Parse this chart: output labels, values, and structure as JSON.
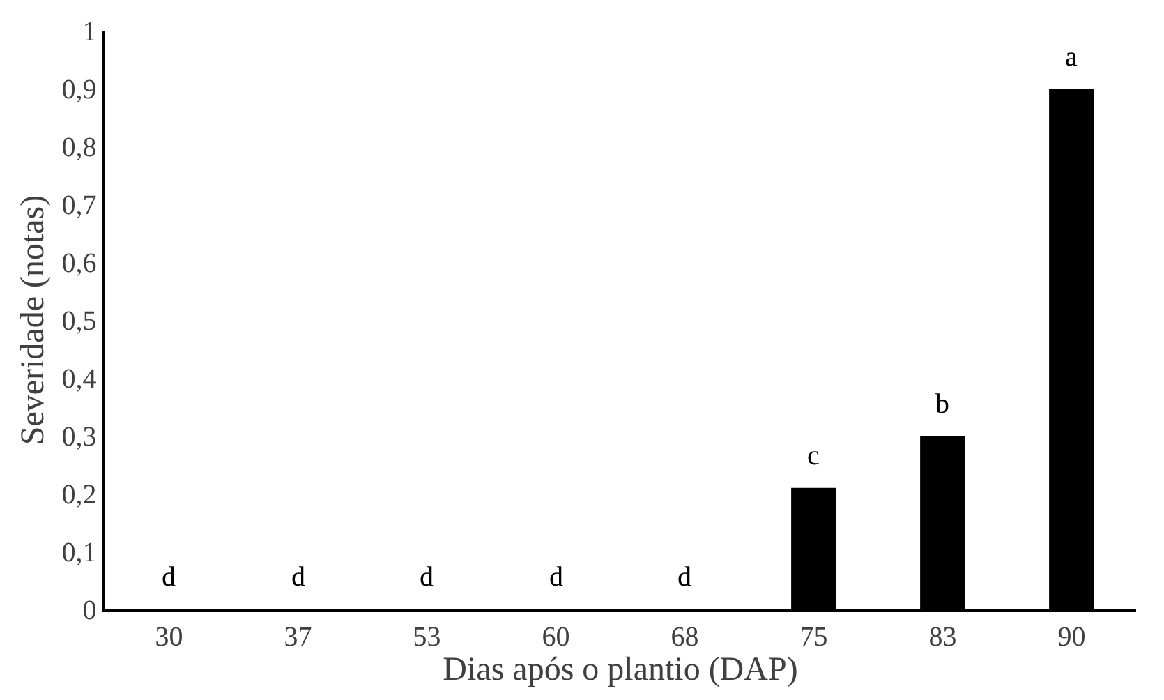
{
  "chart_data": {
    "type": "bar",
    "xlabel": "Dias após o plantio (DAP)",
    "ylabel": "Severidade (notas)",
    "categories": [
      "30",
      "37",
      "53",
      "60",
      "68",
      "75",
      "83",
      "90"
    ],
    "values": [
      0,
      0,
      0,
      0,
      0,
      0.21,
      0.3,
      0.9
    ],
    "color": "#000000",
    "ylim": [
      0,
      1
    ],
    "yticks": [
      0,
      {
        "value": 0.1,
        "label": "0,1"
      },
      {
        "value": 0.2,
        "label": "0,2"
      },
      {
        "value": 0.3,
        "label": "0,3"
      },
      {
        "value": 0.4,
        "label": "0,4"
      },
      {
        "value": 0.5,
        "label": "0,5"
      },
      {
        "value": 0.6,
        "label": "0,6"
      },
      {
        "value": 0.7,
        "label": "0,7"
      },
      {
        "value": 0.8,
        "label": "0,8"
      },
      {
        "value": 0.9,
        "label": "0,9"
      },
      1
    ],
    "annotations": [
      {
        "text": "d",
        "x": "30",
        "y": 0
      },
      {
        "text": "d",
        "x": "37",
        "y": 0
      },
      {
        "text": "d",
        "x": "53",
        "y": 0
      },
      {
        "text": "d",
        "x": "60",
        "y": 0
      },
      {
        "text": "d",
        "x": "68",
        "y": 0
      },
      {
        "text": "c",
        "x": "75",
        "y": 0.21
      },
      {
        "text": "b",
        "x": "83",
        "y": 0.3
      },
      {
        "text": "a",
        "x": "90",
        "y": 0.9
      }
    ]
  }
}
